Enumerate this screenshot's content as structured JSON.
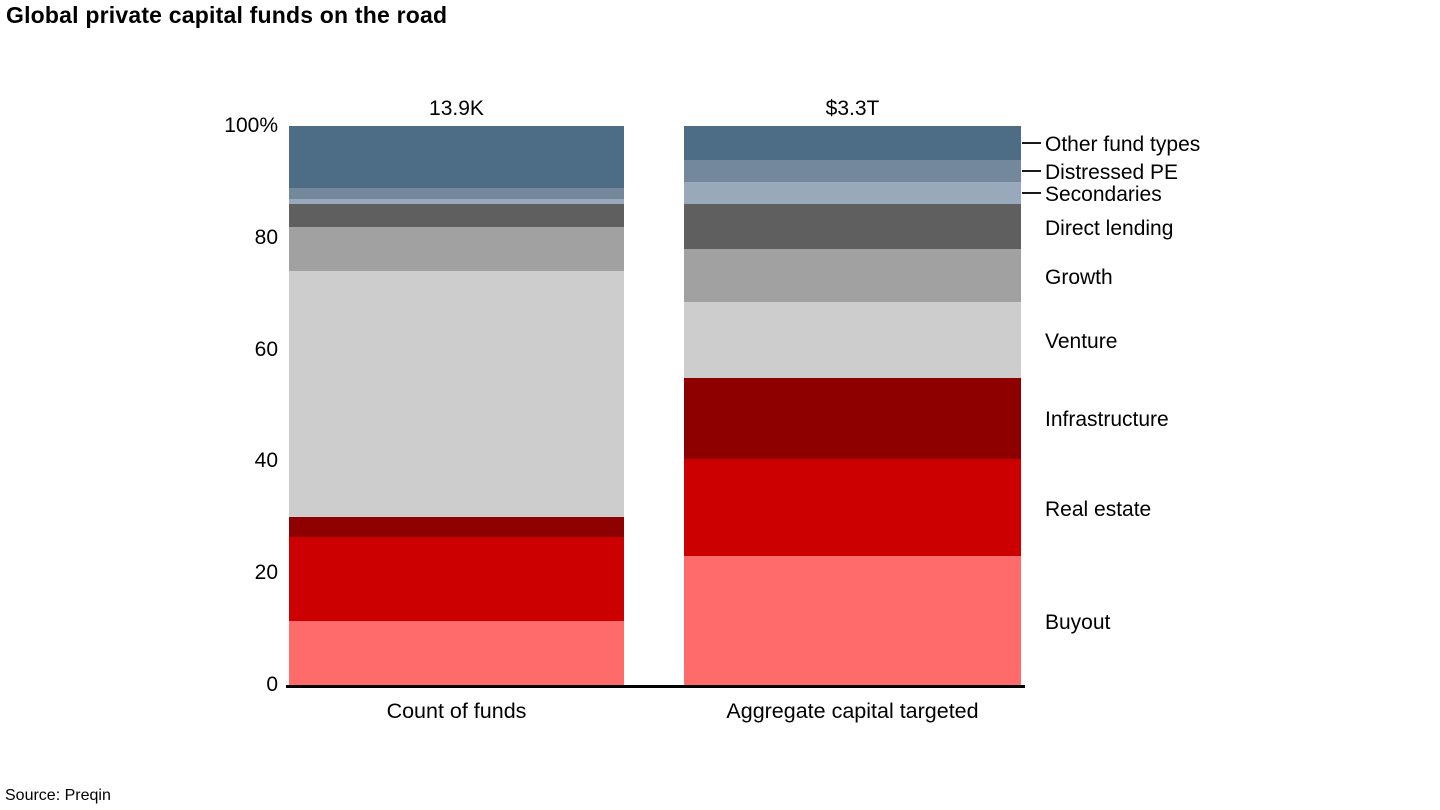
{
  "title": "Global private capital funds on the road",
  "source": "Source: Preqin",
  "chart_data": {
    "type": "stacked-bar-percent",
    "title": "Global private capital funds on the road",
    "categories": [
      "Count of funds",
      "Aggregate capital targeted"
    ],
    "bar_totals": [
      "13.9K",
      "$3.3T"
    ],
    "ylabel": "",
    "ylim": [
      0,
      100
    ],
    "y_ticks": [
      {
        "label": "100%",
        "value": 100
      },
      {
        "label": "80",
        "value": 80
      },
      {
        "label": "60",
        "value": 60
      },
      {
        "label": "40",
        "value": 40
      },
      {
        "label": "20",
        "value": 20
      },
      {
        "label": "0",
        "value": 0
      }
    ],
    "series": [
      {
        "name": "Buyout",
        "color": "#ff6a6a",
        "values": [
          11.5,
          23
        ]
      },
      {
        "name": "Real estate",
        "color": "#cc0000",
        "values": [
          15,
          17.5
        ]
      },
      {
        "name": "Infrastructure",
        "color": "#8e0000",
        "values": [
          3.5,
          14.5
        ]
      },
      {
        "name": "Venture",
        "color": "#cdcdcd",
        "values": [
          44,
          13.5
        ]
      },
      {
        "name": "Growth",
        "color": "#a1a1a1",
        "values": [
          8,
          9.5
        ]
      },
      {
        "name": "Direct lending",
        "color": "#5f5f5f",
        "values": [
          4,
          8
        ]
      },
      {
        "name": "Secondaries",
        "color": "#97a9ba",
        "values": [
          1,
          4
        ]
      },
      {
        "name": "Distressed PE",
        "color": "#74889b",
        "values": [
          2,
          4
        ]
      },
      {
        "name": "Other fund types",
        "color": "#4d6c85",
        "values": [
          11,
          6
        ]
      }
    ],
    "legend": {
      "position": "right",
      "order_top_to_bottom": [
        "Other fund types",
        "Distressed PE",
        "Secondaries",
        "Direct lending",
        "Growth",
        "Venture",
        "Infrastructure",
        "Real estate",
        "Buyout"
      ],
      "leader_lines": [
        "Other fund types",
        "Distressed PE",
        "Secondaries"
      ]
    },
    "grid": false
  }
}
